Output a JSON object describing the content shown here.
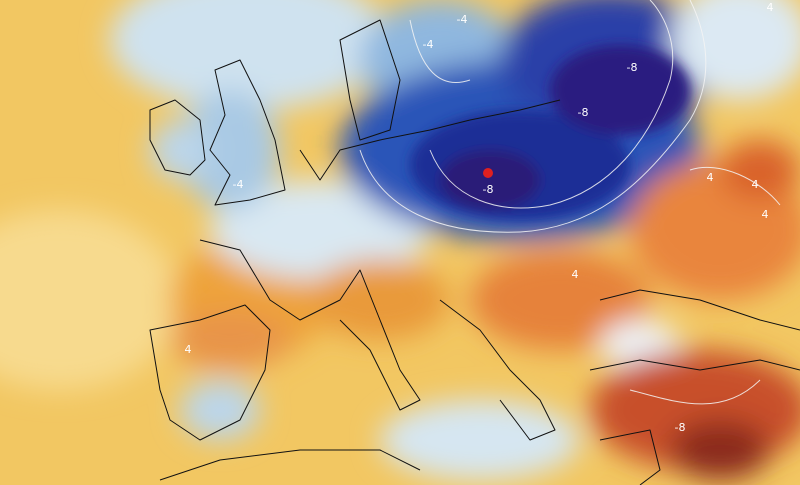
{
  "map": {
    "contour_labels": [
      "-4",
      "-4",
      "-8",
      "-8",
      "-8",
      "-4",
      "4",
      "4",
      "4",
      "4",
      "4",
      "4",
      "-8"
    ]
  }
}
